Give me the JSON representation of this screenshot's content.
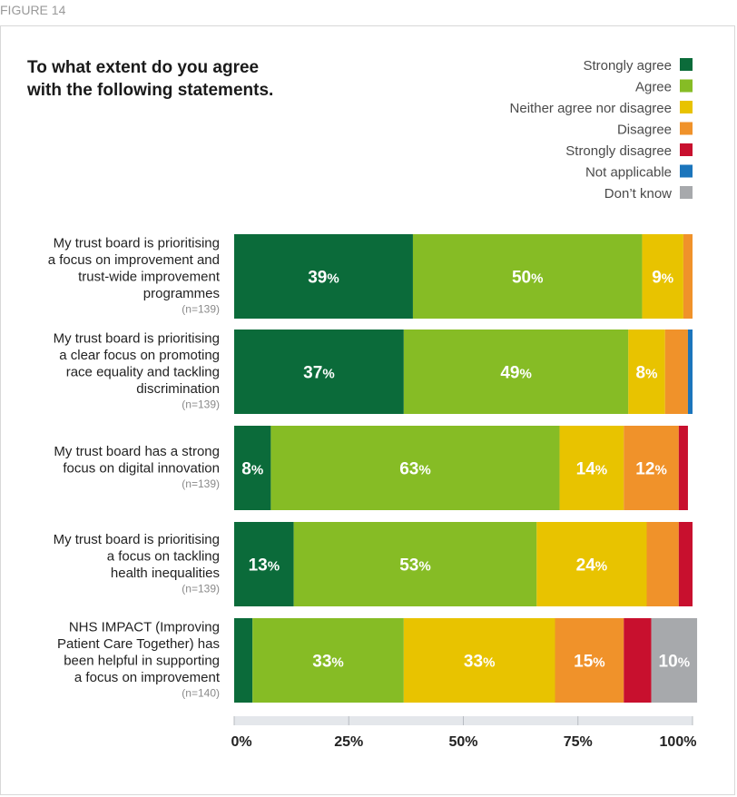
{
  "figure_label": "FIGURE 14",
  "chart_data": {
    "type": "bar",
    "orientation": "horizontal-stacked-100",
    "title_lines": [
      "To what extent do you agree",
      "with the following statements."
    ],
    "categories": [
      {
        "lines": [
          "My trust board is prioritising",
          "a focus on improvement and",
          "trust-wide improvement",
          "programmes"
        ],
        "n": "(n=139)"
      },
      {
        "lines": [
          "My trust board is prioritising",
          "a clear focus on promoting",
          "race equality and tackling",
          "discrimination"
        ],
        "n": "(n=139)"
      },
      {
        "lines": [
          "My trust board has a strong",
          "focus on digital innovation"
        ],
        "n": "(n=139)"
      },
      {
        "lines": [
          "My trust board is prioritising",
          "a focus on tackling",
          "health inequalities"
        ],
        "n": "(n=139)"
      },
      {
        "lines": [
          "NHS IMPACT (Improving",
          "Patient Care Together) has",
          "been helpful in supporting",
          "a focus on improvement"
        ],
        "n": "(n=140)"
      }
    ],
    "series": [
      {
        "name": "Strongly agree",
        "color": "#0b6b3a",
        "values": [
          39,
          37,
          8,
          13,
          4
        ]
      },
      {
        "name": "Agree",
        "color": "#86bc25",
        "values": [
          50,
          49,
          63,
          53,
          33
        ]
      },
      {
        "name": "Neither agree nor disagree",
        "color": "#e8c300",
        "values": [
          9,
          8,
          14,
          24,
          33
        ]
      },
      {
        "name": "Disagree",
        "color": "#f0922a",
        "values": [
          2,
          5,
          12,
          7,
          15
        ]
      },
      {
        "name": "Strongly disagree",
        "color": "#c8102e",
        "values": [
          0,
          0,
          2,
          3,
          6
        ]
      },
      {
        "name": "Not applicable",
        "color": "#1b75bc",
        "values": [
          0,
          1,
          0,
          0,
          0
        ]
      },
      {
        "name": "Don’t know",
        "color": "#a7a9ac",
        "values": [
          0,
          0,
          0,
          0,
          10
        ]
      }
    ],
    "value_labels": [
      [
        "39",
        "50",
        "9",
        null,
        null,
        null,
        null
      ],
      [
        "37",
        "49",
        "8",
        null,
        null,
        null,
        null
      ],
      [
        "8",
        "63",
        "14",
        "12",
        null,
        null,
        null
      ],
      [
        "13",
        "53",
        "24",
        null,
        null,
        null,
        null
      ],
      [
        null,
        "33",
        "33",
        "15",
        null,
        null,
        "10"
      ]
    ],
    "value_suffix": "%",
    "xlim": [
      0,
      100
    ],
    "xticks": [
      "0%",
      "25%",
      "50%",
      "75%",
      "100%"
    ],
    "legend_position": "top-right",
    "grid": false
  }
}
